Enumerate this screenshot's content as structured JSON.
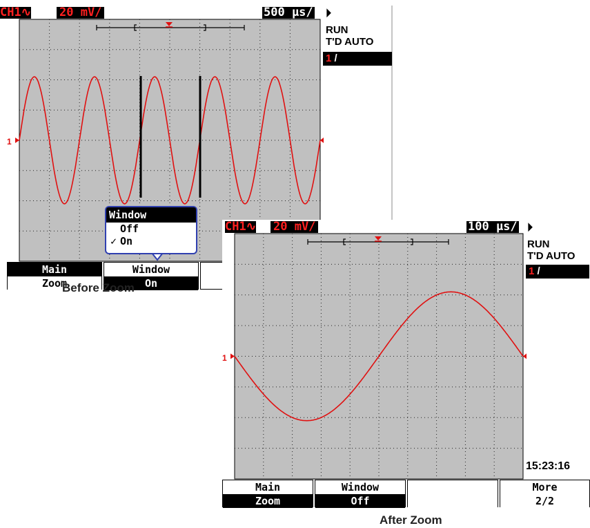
{
  "before": {
    "caption": "Before Zoom",
    "channel": "CH1",
    "channel_glyph": "∿",
    "vscale": "20 mV/",
    "timebase": "500 µs/",
    "status_run": "RUN",
    "status_trig": "T'D AUTO",
    "trig_channel": "1",
    "trig_slope": "/",
    "ch_marker": "1",
    "popup": {
      "title": "Window",
      "options": [
        "Off",
        "On"
      ],
      "checked": "✓"
    },
    "softkeys": [
      {
        "top": "Main",
        "bottom": "Zoom"
      },
      {
        "top": "Window",
        "bottom": "On"
      }
    ],
    "waveform": {
      "cycles_visible": 5,
      "amplitude_divs": 2.1
    }
  },
  "after": {
    "caption": "After Zoom",
    "channel": "CH1",
    "channel_glyph": "∿",
    "vscale": "20 mV/",
    "timebase": "100 µs/",
    "status_run": "RUN",
    "status_trig": "T'D AUTO",
    "trig_channel": "1",
    "trig_slope": "/",
    "ch_marker": "1",
    "time": "15:23:16",
    "softkeys": [
      {
        "top": "Main",
        "bottom": "Zoom"
      },
      {
        "top": "Window",
        "bottom": "Off"
      },
      {
        "top": "",
        "bottom": ""
      },
      {
        "top": "More",
        "bottom": "2/2"
      }
    ],
    "waveform": {
      "cycles_visible": 1,
      "amplitude_divs": 2.1
    }
  },
  "colors": {
    "trace": "#e01010",
    "grid_bg": "#c0c0c0",
    "popup_border": "#3040b0"
  }
}
